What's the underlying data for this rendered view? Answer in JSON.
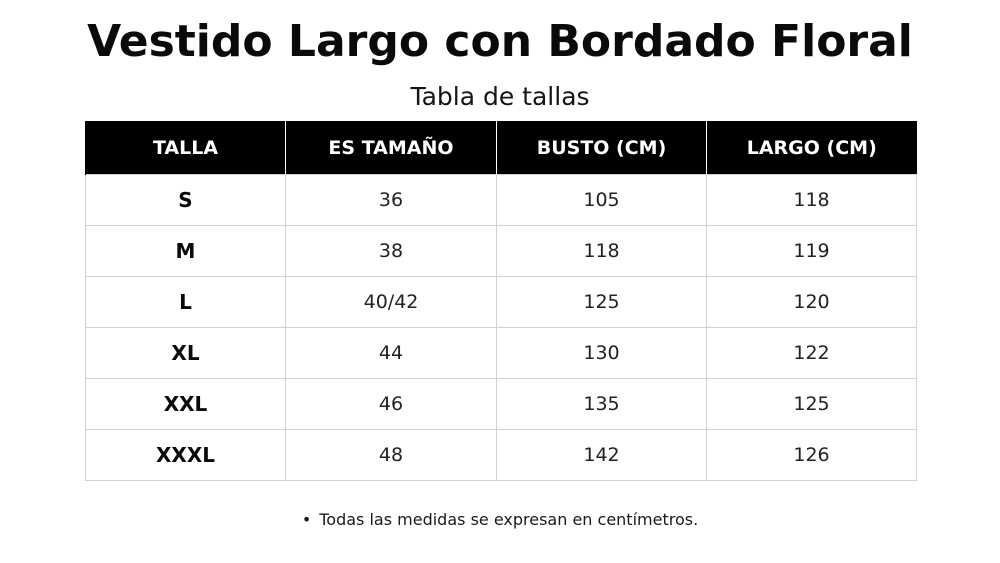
{
  "title": "Vestido Largo con Bordado Floral",
  "subtitle": "Tabla de tallas",
  "table": {
    "headers": [
      "TALLA",
      "ES TAMAÑO",
      "BUSTO (CM)",
      "LARGO (CM)"
    ],
    "rows": [
      [
        "S",
        "36",
        "105",
        "118"
      ],
      [
        "M",
        "38",
        "118",
        "119"
      ],
      [
        "L",
        "40/42",
        "125",
        "120"
      ],
      [
        "XL",
        "44",
        "130",
        "122"
      ],
      [
        "XXL",
        "46",
        "135",
        "125"
      ],
      [
        "XXXL",
        "48",
        "142",
        "126"
      ]
    ]
  },
  "note": {
    "bullet": "•",
    "text": "Todas las medidas se expresan en centímetros."
  },
  "colors": {
    "header_bg": "#000000",
    "header_text": "#ffffff",
    "grid": "#d2d2d2"
  }
}
